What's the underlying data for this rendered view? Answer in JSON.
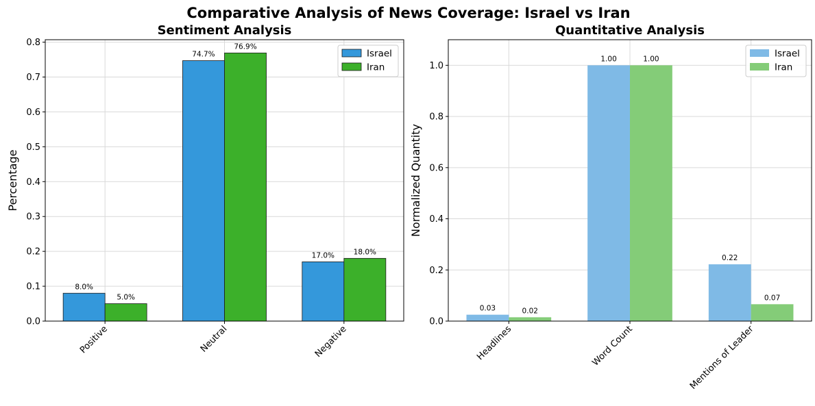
{
  "title": "Comparative Analysis of News Coverage: Israel vs Iran",
  "chart_data": [
    {
      "type": "bar",
      "title": "Sentiment Analysis",
      "xlabel": "",
      "ylabel": "Percentage",
      "categories": [
        "Positive",
        "Neutral",
        "Negative"
      ],
      "series": [
        {
          "name": "Israel",
          "values": [
            0.08,
            0.747,
            0.17
          ],
          "labels": [
            "8.0%",
            "74.7%",
            "17.0%"
          ],
          "color": "#3498db"
        },
        {
          "name": "Iran",
          "values": [
            0.05,
            0.769,
            0.18
          ],
          "labels": [
            "5.0%",
            "76.9%",
            "18.0%"
          ],
          "color": "#3cb02a"
        }
      ],
      "ylim": [
        0,
        0.807
      ],
      "yticks": [
        0.0,
        0.1,
        0.2,
        0.3,
        0.4,
        0.5,
        0.6,
        0.7,
        0.8
      ],
      "ytick_labels": [
        "0.0",
        "0.1",
        "0.2",
        "0.3",
        "0.4",
        "0.5",
        "0.6",
        "0.7",
        "0.8"
      ],
      "bar_edges": true,
      "grid": true,
      "legend": "upper right"
    },
    {
      "type": "bar",
      "title": "Quantitative Analysis",
      "xlabel": "",
      "ylabel": "Normalized Quantity",
      "categories": [
        "Headlines",
        "Word Count",
        "Mentions of Leader"
      ],
      "series": [
        {
          "name": "Israel",
          "values": [
            0.025,
            1.0,
            0.222
          ],
          "labels": [
            "0.03",
            "1.00",
            "0.22"
          ],
          "color": "#7fbae6"
        },
        {
          "name": "Iran",
          "values": [
            0.015,
            1.0,
            0.066
          ],
          "labels": [
            "0.02",
            "1.00",
            "0.07"
          ],
          "color": "#84cc78"
        }
      ],
      "ylim": [
        0,
        1.1
      ],
      "yticks": [
        0.0,
        0.2,
        0.4,
        0.6,
        0.8,
        1.0
      ],
      "ytick_labels": [
        "0.0",
        "0.2",
        "0.4",
        "0.6",
        "0.8",
        "1.0"
      ],
      "bar_edges": false,
      "grid": true,
      "legend": "upper right"
    }
  ]
}
